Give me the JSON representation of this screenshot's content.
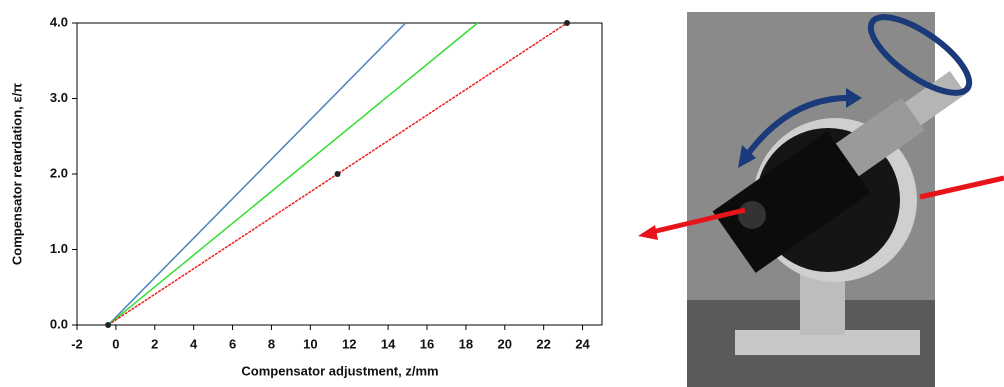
{
  "chart_data": {
    "type": "line",
    "xlabel": "Compensator adjustment, z/mm",
    "ylabel": "Compensator retardation, ε/π",
    "xlim": [
      -2,
      25
    ],
    "ylim": [
      0,
      4.0
    ],
    "xticks": [
      -2,
      0,
      2,
      4,
      6,
      8,
      10,
      12,
      14,
      16,
      18,
      20,
      22,
      24
    ],
    "yticks": [
      {
        "value": 0,
        "label": "0.0"
      },
      {
        "value": 1,
        "label": "1.0"
      },
      {
        "value": 2,
        "label": "2.0"
      },
      {
        "value": 3,
        "label": "3.0"
      },
      {
        "value": 4,
        "label": "4.0"
      }
    ],
    "series": [
      {
        "color": "#4f81bd",
        "x": [
          -0.4,
          14.9
        ],
        "values": [
          0,
          4.0
        ],
        "marker": false
      },
      {
        "color": "#33dd33",
        "x": [
          -0.4,
          18.6
        ],
        "values": [
          0,
          4.0
        ],
        "marker": false
      },
      {
        "color": "#ee2222",
        "x": [
          -0.4,
          11.4,
          23.2
        ],
        "values": [
          0,
          2.0,
          4.0
        ],
        "marker": true
      }
    ]
  }
}
